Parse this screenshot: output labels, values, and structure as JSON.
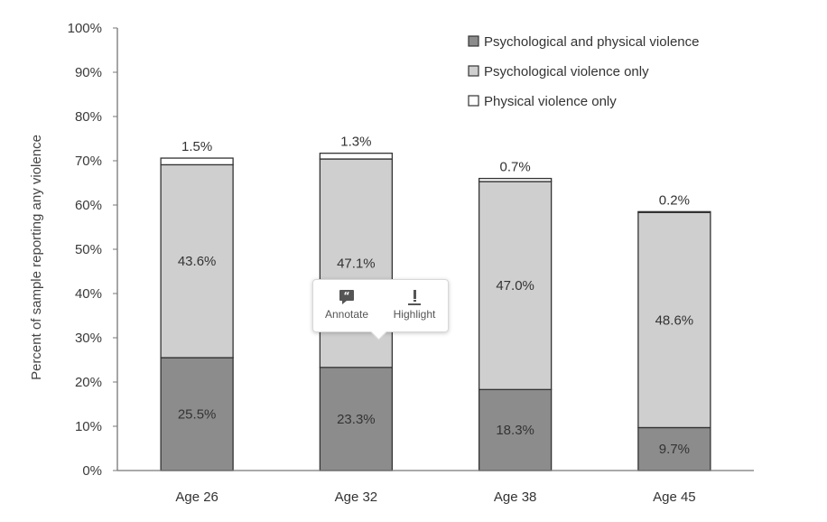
{
  "chart_data": {
    "type": "bar",
    "stacked": true,
    "categories": [
      "Age 26",
      "Age 32",
      "Age 38",
      "Age 45"
    ],
    "series": [
      {
        "name": "Psychological and physical violence",
        "values": [
          25.5,
          23.3,
          18.3,
          9.7
        ],
        "labels": [
          "25.5%",
          "23.3%",
          "18.3%",
          "9.7%"
        ],
        "color": "#8c8c8c"
      },
      {
        "name": "Psychological violence only",
        "values": [
          43.6,
          47.1,
          47.0,
          48.6
        ],
        "labels": [
          "43.6%",
          "47.1%",
          "47.0%",
          "48.6%"
        ],
        "color": "#cfcfcf"
      },
      {
        "name": "Physical violence only",
        "values": [
          1.5,
          1.3,
          0.7,
          0.2
        ],
        "labels": [
          "1.5%",
          "1.3%",
          "0.7%",
          "0.2%"
        ],
        "color": "#ffffff"
      }
    ],
    "ylabel": "Percent of sample reporting any violence",
    "xlabel": "",
    "ylim": [
      0,
      100
    ],
    "yticks": [
      "0%",
      "10%",
      "20%",
      "30%",
      "40%",
      "50%",
      "60%",
      "70%",
      "80%",
      "90%",
      "100%"
    ],
    "grid": false,
    "legend_position": "top-right"
  },
  "popup": {
    "annotate_label": "Annotate",
    "highlight_label": "Highlight",
    "annotate_icon": "quote-icon",
    "highlight_icon": "highlighter-icon"
  }
}
